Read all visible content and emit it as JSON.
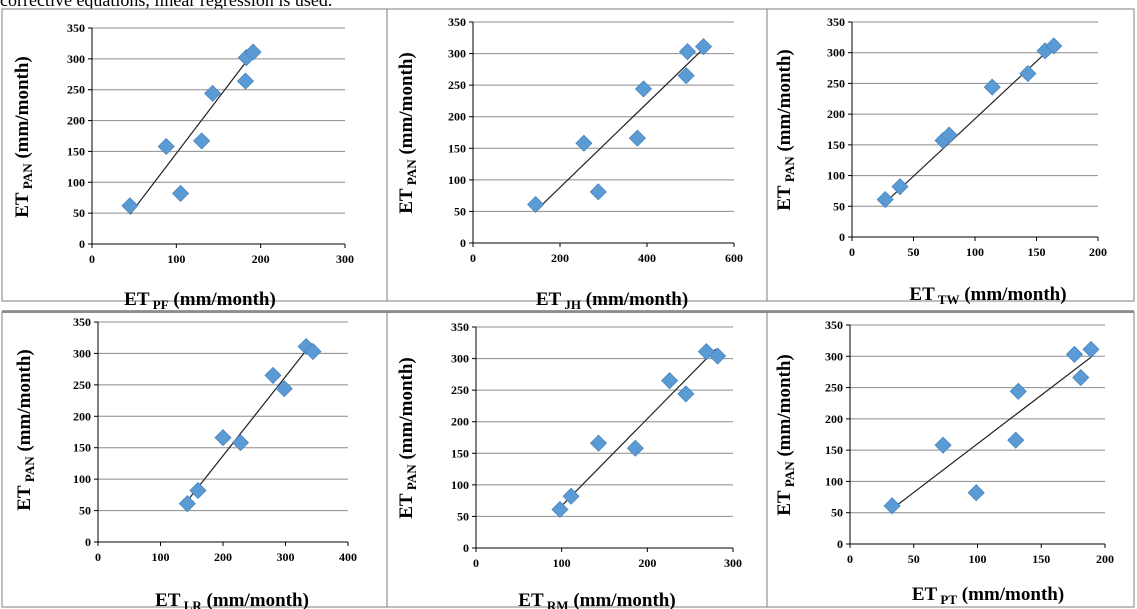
{
  "caption": "corrective equations, linear regression is used.",
  "colors": {
    "marker": "#5b9bd5",
    "marker_edge": "#4a86bf",
    "grid": "#8c8c8c",
    "trend": "#222222",
    "frame": "#7f7f7f"
  },
  "chart_data": [
    {
      "type": "scatter",
      "ylabel": {
        "main": "ET",
        "sub": "PAN",
        "unit": " (mm/month)"
      },
      "xlabel": {
        "main": "ET",
        "sub": "PF",
        "unit": " (mm/month)"
      },
      "xlim": [
        0,
        300
      ],
      "ylim": [
        0,
        350
      ],
      "xticks": [
        "0",
        "100",
        "200",
        "300"
      ],
      "yticks": [
        "0",
        "50",
        "100",
        "150",
        "200",
        "250",
        "300",
        "350"
      ],
      "grid": "horizontal",
      "points": [
        [
          45,
          62
        ],
        [
          88,
          158
        ],
        [
          105,
          82
        ],
        [
          130,
          167
        ],
        [
          143,
          244
        ],
        [
          182,
          264
        ],
        [
          183,
          302
        ],
        [
          191,
          311
        ]
      ],
      "trendline": [
        [
          45,
          48
        ],
        [
          192,
          312
        ]
      ]
    },
    {
      "type": "scatter",
      "ylabel": {
        "main": "ET",
        "sub": "PAN",
        "unit": " (mm/month)"
      },
      "xlabel": {
        "main": "ET",
        "sub": "JH",
        "unit": " (mm/month)"
      },
      "xlim": [
        0,
        600
      ],
      "ylim": [
        0,
        350
      ],
      "xticks": [
        "0",
        "200",
        "400",
        "600"
      ],
      "yticks": [
        "0",
        "50",
        "100",
        "150",
        "200",
        "250",
        "300",
        "350"
      ],
      "grid": "horizontal",
      "points": [
        [
          144,
          61
        ],
        [
          255,
          158
        ],
        [
          288,
          81
        ],
        [
          378,
          166
        ],
        [
          392,
          244
        ],
        [
          490,
          265
        ],
        [
          493,
          303
        ],
        [
          530,
          311
        ]
      ],
      "trendline": [
        [
          143,
          50
        ],
        [
          530,
          308
        ]
      ]
    },
    {
      "type": "scatter",
      "ylabel": {
        "main": "ET",
        "sub": "PAN",
        "unit": " (mm/month)"
      },
      "xlabel": {
        "main": "ET",
        "sub": "TW",
        "unit": " (mm/month)"
      },
      "xlim": [
        0,
        200
      ],
      "ylim": [
        0,
        350
      ],
      "xticks": [
        "0",
        "50",
        "100",
        "150",
        "200"
      ],
      "yticks": [
        "0",
        "50",
        "100",
        "150",
        "200",
        "250",
        "300",
        "350"
      ],
      "grid": "horizontal",
      "points": [
        [
          27,
          61
        ],
        [
          39,
          82
        ],
        [
          74,
          157
        ],
        [
          79,
          166
        ],
        [
          114,
          244
        ],
        [
          143,
          266
        ],
        [
          157,
          303
        ],
        [
          164,
          311
        ]
      ],
      "trendline": [
        [
          27,
          56
        ],
        [
          164,
          312
        ]
      ]
    },
    {
      "type": "scatter",
      "ylabel": {
        "main": "ET",
        "sub": "PAN",
        "unit": " (mm/month)"
      },
      "xlabel": {
        "main": "ET",
        "sub": "LR",
        "unit": " (mm/month)"
      },
      "xlim": [
        0,
        400
      ],
      "ylim": [
        0,
        350
      ],
      "xticks": [
        "0",
        "100",
        "200",
        "300",
        "400"
      ],
      "yticks": [
        "0",
        "50",
        "100",
        "150",
        "200",
        "250",
        "300",
        "350"
      ],
      "grid": "horizontal",
      "points": [
        [
          143,
          61
        ],
        [
          160,
          82
        ],
        [
          200,
          166
        ],
        [
          228,
          158
        ],
        [
          280,
          265
        ],
        [
          298,
          244
        ],
        [
          333,
          311
        ],
        [
          344,
          303
        ]
      ],
      "trendline": [
        [
          145,
          68
        ],
        [
          342,
          316
        ]
      ]
    },
    {
      "type": "scatter",
      "ylabel": {
        "main": "ET",
        "sub": "PAN",
        "unit": " (mm/month)"
      },
      "xlabel": {
        "main": "ET",
        "sub": "RM",
        "unit": " (mm/month)"
      },
      "xlim": [
        0,
        300
      ],
      "ylim": [
        0,
        350
      ],
      "xticks": [
        "0",
        "100",
        "200",
        "300"
      ],
      "yticks": [
        "0",
        "50",
        "100",
        "150",
        "200",
        "250",
        "300",
        "350"
      ],
      "grid": "horizontal",
      "points": [
        [
          98,
          61
        ],
        [
          111,
          82
        ],
        [
          143,
          166
        ],
        [
          186,
          158
        ],
        [
          226,
          265
        ],
        [
          245,
          244
        ],
        [
          269,
          311
        ],
        [
          282,
          304
        ]
      ],
      "trendline": [
        [
          98,
          64
        ],
        [
          280,
          315
        ]
      ]
    },
    {
      "type": "scatter",
      "ylabel": {
        "main": "ET",
        "sub": "PAN",
        "unit": " (mm/month)"
      },
      "xlabel": {
        "main": "ET",
        "sub": "PT",
        "unit": " (mm/month)"
      },
      "xlim": [
        0,
        200
      ],
      "ylim": [
        0,
        350
      ],
      "xticks": [
        "0",
        "50",
        "100",
        "150",
        "200"
      ],
      "yticks": [
        "0",
        "50",
        "100",
        "150",
        "200",
        "250",
        "300",
        "350"
      ],
      "grid": "horizontal",
      "points": [
        [
          33,
          61
        ],
        [
          73,
          158
        ],
        [
          99,
          82
        ],
        [
          130,
          166
        ],
        [
          132,
          244
        ],
        [
          176,
          303
        ],
        [
          181,
          266
        ],
        [
          189,
          311
        ]
      ],
      "trendline": [
        [
          33,
          56
        ],
        [
          190,
          300
        ]
      ]
    }
  ]
}
